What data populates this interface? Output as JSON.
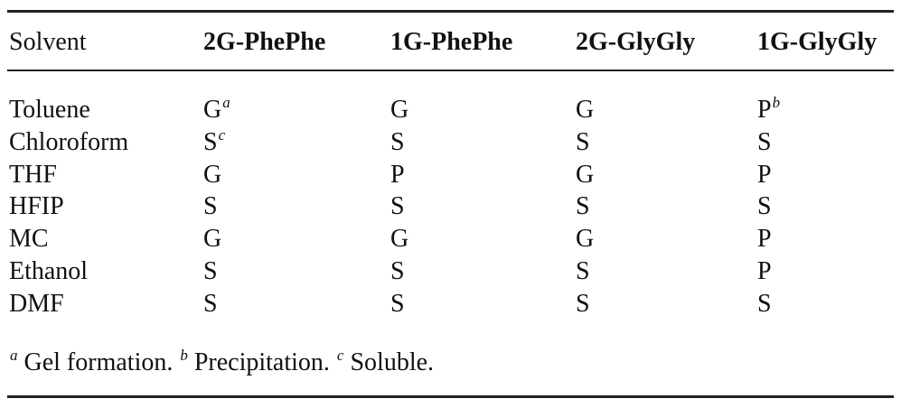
{
  "table": {
    "header": [
      "Solvent",
      "2G-PhePhe",
      "1G-PhePhe",
      "2G-GlyGly",
      "1G-GlyGly"
    ],
    "rows": [
      [
        {
          "text": "Toluene"
        },
        {
          "text": "G",
          "sup": "a"
        },
        {
          "text": "G"
        },
        {
          "text": "G"
        },
        {
          "text": "P",
          "sup": "b"
        }
      ],
      [
        {
          "text": "Chloroform"
        },
        {
          "text": "S",
          "sup": "c"
        },
        {
          "text": "S"
        },
        {
          "text": "S"
        },
        {
          "text": "S"
        }
      ],
      [
        {
          "text": "THF"
        },
        {
          "text": "G"
        },
        {
          "text": "P"
        },
        {
          "text": "G"
        },
        {
          "text": "P"
        }
      ],
      [
        {
          "text": "HFIP"
        },
        {
          "text": "S"
        },
        {
          "text": "S"
        },
        {
          "text": "S"
        },
        {
          "text": "S"
        }
      ],
      [
        {
          "text": "MC"
        },
        {
          "text": "G"
        },
        {
          "text": "G"
        },
        {
          "text": "G"
        },
        {
          "text": "P"
        }
      ],
      [
        {
          "text": "Ethanol"
        },
        {
          "text": "S"
        },
        {
          "text": "S"
        },
        {
          "text": "S"
        },
        {
          "text": "P"
        }
      ],
      [
        {
          "text": "DMF"
        },
        {
          "text": "S"
        },
        {
          "text": "S"
        },
        {
          "text": "S"
        },
        {
          "text": "S"
        }
      ]
    ],
    "footnotes": [
      {
        "mark": "a",
        "text": "Gel formation."
      },
      {
        "mark": "b",
        "text": "Precipitation."
      },
      {
        "mark": "c",
        "text": "Soluble."
      }
    ]
  }
}
